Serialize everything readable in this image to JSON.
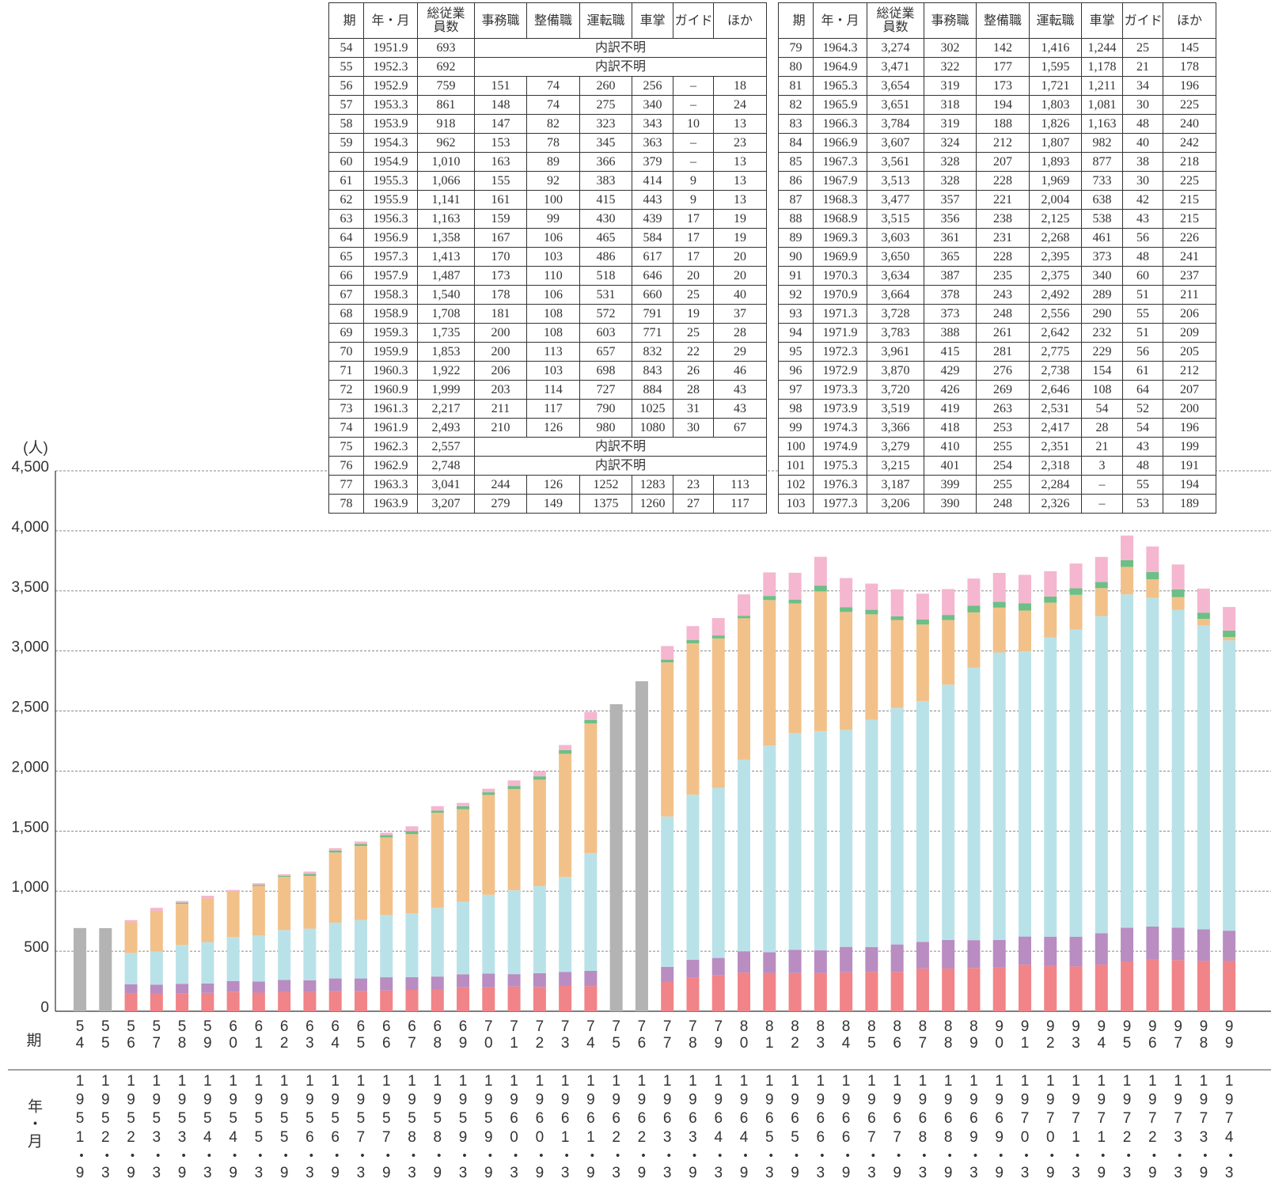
{
  "chart_data": {
    "type": "bar",
    "stacked": true,
    "y_unit": "(人)",
    "x_label": "期",
    "x2_label": "年・月",
    "categories": [
      "54",
      "55",
      "56",
      "57",
      "58",
      "59",
      "60",
      "61",
      "62",
      "63",
      "64",
      "65",
      "66",
      "67",
      "68",
      "69",
      "70",
      "71",
      "72",
      "73",
      "74",
      "75",
      "76",
      "77",
      "78",
      "79",
      "80",
      "81",
      "82",
      "83",
      "84",
      "85",
      "86",
      "87",
      "88",
      "89",
      "90",
      "91",
      "92",
      "93",
      "94",
      "95",
      "96",
      "97",
      "98",
      "99"
    ],
    "dates": [
      "1951・9",
      "1952・3",
      "1952・9",
      "1953・3",
      "1953・9",
      "1954・3",
      "1954・9",
      "1955・3",
      "1955・9",
      "1956・3",
      "1956・9",
      "1957・3",
      "1957・9",
      "1958・3",
      "1958・9",
      "1959・3",
      "1959・9",
      "1960・3",
      "1960・9",
      "1961・3",
      "1961・9",
      "1962・3",
      "1962・9",
      "1963・3",
      "1963・9",
      "1964・3",
      "1964・9",
      "1965・3",
      "1965・9",
      "1966・3",
      "1966・9",
      "1967・3",
      "1967・9",
      "1968・3",
      "1968・9",
      "1969・3",
      "1969・9",
      "1970・3",
      "1970・9",
      "1971・3",
      "1971・9",
      "1972・3",
      "1972・9",
      "1973・3",
      "1973・9",
      "1974・3"
    ],
    "ylim": [
      0,
      4500
    ],
    "yticks": [
      0,
      500,
      {
        "value": 1000,
        "label": "1,000"
      },
      {
        "value": 1500,
        "label": "1,500"
      },
      {
        "value": 2000,
        "label": "2,000"
      },
      {
        "value": 2500,
        "label": "2,500"
      },
      {
        "value": 3000,
        "label": "3,000"
      },
      {
        "value": 3500,
        "label": "3,500"
      },
      {
        "value": 4000,
        "label": "4,000"
      },
      {
        "value": 4500,
        "label": "4,500"
      }
    ],
    "grid": true,
    "series": [
      {
        "name": "事務職",
        "color": "#f08488",
        "values": [
          null,
          null,
          151,
          148,
          147,
          153,
          163,
          155,
          161,
          159,
          167,
          170,
          173,
          178,
          181,
          200,
          200,
          206,
          203,
          211,
          210,
          null,
          null,
          244,
          279,
          302,
          322,
          319,
          318,
          319,
          324,
          328,
          328,
          357,
          356,
          361,
          365,
          387,
          378,
          373,
          388,
          415,
          429,
          426,
          419,
          418
        ]
      },
      {
        "name": "整備職",
        "color": "#b98cc2",
        "values": [
          null,
          null,
          74,
          74,
          82,
          78,
          89,
          92,
          100,
          99,
          106,
          103,
          110,
          106,
          108,
          108,
          113,
          103,
          114,
          117,
          126,
          null,
          null,
          126,
          149,
          142,
          177,
          173,
          194,
          188,
          212,
          207,
          228,
          221,
          238,
          231,
          228,
          235,
          243,
          248,
          261,
          281,
          276,
          269,
          263,
          253
        ]
      },
      {
        "name": "運転職",
        "color": "#b9e2e8",
        "values": [
          null,
          null,
          260,
          275,
          323,
          345,
          366,
          383,
          415,
          430,
          465,
          486,
          518,
          531,
          572,
          603,
          657,
          698,
          727,
          790,
          980,
          null,
          null,
          1252,
          1375,
          1416,
          1595,
          1721,
          1803,
          1826,
          1807,
          1893,
          1969,
          2004,
          2125,
          2268,
          2395,
          2375,
          2492,
          2556,
          2642,
          2775,
          2738,
          2646,
          2531,
          2417
        ]
      },
      {
        "name": "車掌",
        "color": "#f2c189",
        "values": [
          null,
          null,
          256,
          340,
          343,
          363,
          379,
          414,
          443,
          439,
          584,
          617,
          646,
          660,
          791,
          771,
          832,
          843,
          884,
          1025,
          1080,
          null,
          null,
          1283,
          1260,
          1244,
          1178,
          1211,
          1081,
          1163,
          982,
          877,
          733,
          638,
          538,
          461,
          373,
          340,
          289,
          290,
          232,
          229,
          154,
          108,
          54,
          28
        ]
      },
      {
        "name": "ガイド",
        "color": "#6cbf86",
        "values": [
          null,
          null,
          null,
          null,
          10,
          null,
          null,
          9,
          9,
          17,
          17,
          17,
          20,
          25,
          19,
          25,
          22,
          26,
          28,
          31,
          30,
          null,
          null,
          23,
          27,
          25,
          21,
          34,
          30,
          48,
          40,
          38,
          30,
          42,
          43,
          56,
          48,
          60,
          51,
          55,
          51,
          56,
          61,
          64,
          52,
          54
        ]
      },
      {
        "name": "ほか",
        "color": "#f5b6cf",
        "values": [
          null,
          null,
          18,
          24,
          13,
          23,
          13,
          13,
          13,
          19,
          19,
          20,
          20,
          40,
          37,
          28,
          29,
          46,
          43,
          43,
          67,
          null,
          null,
          113,
          117,
          145,
          178,
          196,
          225,
          240,
          242,
          218,
          225,
          215,
          215,
          226,
          241,
          237,
          211,
          206,
          209,
          205,
          212,
          207,
          200,
          196
        ]
      },
      {
        "name": "総従業員数",
        "color": "#b3b3b3",
        "values": [
          693,
          692,
          null,
          null,
          null,
          null,
          null,
          null,
          null,
          null,
          null,
          null,
          null,
          null,
          null,
          null,
          null,
          null,
          null,
          null,
          null,
          2557,
          2748,
          null,
          null,
          null,
          null,
          null,
          null,
          null,
          null,
          null,
          null,
          null,
          null,
          null,
          null,
          null,
          null,
          null,
          null,
          null,
          null,
          null,
          null,
          null
        ]
      }
    ]
  },
  "tables": [
    {
      "header": [
        "期",
        "年・月",
        "総従業員数",
        "事務職",
        "整備職",
        "運転職",
        "車掌",
        "ガイド",
        "ほか"
      ],
      "rows": [
        [
          "54",
          "1951.9",
          "693",
          "内訳不明"
        ],
        [
          "55",
          "1952.3",
          "692",
          "内訳不明"
        ],
        [
          "56",
          "1952.9",
          "759",
          "151",
          "74",
          "260",
          "256",
          "–",
          "18"
        ],
        [
          "57",
          "1953.3",
          "861",
          "148",
          "74",
          "275",
          "340",
          "–",
          "24"
        ],
        [
          "58",
          "1953.9",
          "918",
          "147",
          "82",
          "323",
          "343",
          "10",
          "13"
        ],
        [
          "59",
          "1954.3",
          "962",
          "153",
          "78",
          "345",
          "363",
          "–",
          "23"
        ],
        [
          "60",
          "1954.9",
          "1,010",
          "163",
          "89",
          "366",
          "379",
          "–",
          "13"
        ],
        [
          "61",
          "1955.3",
          "1,066",
          "155",
          "92",
          "383",
          "414",
          "9",
          "13"
        ],
        [
          "62",
          "1955.9",
          "1,141",
          "161",
          "100",
          "415",
          "443",
          "9",
          "13"
        ],
        [
          "63",
          "1956.3",
          "1,163",
          "159",
          "99",
          "430",
          "439",
          "17",
          "19"
        ],
        [
          "64",
          "1956.9",
          "1,358",
          "167",
          "106",
          "465",
          "584",
          "17",
          "19"
        ],
        [
          "65",
          "1957.3",
          "1,413",
          "170",
          "103",
          "486",
          "617",
          "17",
          "20"
        ],
        [
          "66",
          "1957.9",
          "1,487",
          "173",
          "110",
          "518",
          "646",
          "20",
          "20"
        ],
        [
          "67",
          "1958.3",
          "1,540",
          "178",
          "106",
          "531",
          "660",
          "25",
          "40"
        ],
        [
          "68",
          "1958.9",
          "1,708",
          "181",
          "108",
          "572",
          "791",
          "19",
          "37"
        ],
        [
          "69",
          "1959.3",
          "1,735",
          "200",
          "108",
          "603",
          "771",
          "25",
          "28"
        ],
        [
          "70",
          "1959.9",
          "1,853",
          "200",
          "113",
          "657",
          "832",
          "22",
          "29"
        ],
        [
          "71",
          "1960.3",
          "1,922",
          "206",
          "103",
          "698",
          "843",
          "26",
          "46"
        ],
        [
          "72",
          "1960.9",
          "1,999",
          "203",
          "114",
          "727",
          "884",
          "28",
          "43"
        ],
        [
          "73",
          "1961.3",
          "2,217",
          "211",
          "117",
          "790",
          "1025",
          "31",
          "43"
        ],
        [
          "74",
          "1961.9",
          "2,493",
          "210",
          "126",
          "980",
          "1080",
          "30",
          "67"
        ],
        [
          "75",
          "1962.3",
          "2,557",
          "内訳不明"
        ],
        [
          "76",
          "1962.9",
          "2,748",
          "内訳不明"
        ],
        [
          "77",
          "1963.3",
          "3,041",
          "244",
          "126",
          "1252",
          "1283",
          "23",
          "113"
        ],
        [
          "78",
          "1963.9",
          "3,207",
          "279",
          "149",
          "1375",
          "1260",
          "27",
          "117"
        ]
      ]
    },
    {
      "header": [
        "期",
        "年・月",
        "総従業員数",
        "事務職",
        "整備職",
        "運転職",
        "車掌",
        "ガイド",
        "ほか"
      ],
      "rows": [
        [
          "79",
          "1964.3",
          "3,274",
          "302",
          "142",
          "1,416",
          "1,244",
          "25",
          "145"
        ],
        [
          "80",
          "1964.9",
          "3,471",
          "322",
          "177",
          "1,595",
          "1,178",
          "21",
          "178"
        ],
        [
          "81",
          "1965.3",
          "3,654",
          "319",
          "173",
          "1,721",
          "1,211",
          "34",
          "196"
        ],
        [
          "82",
          "1965.9",
          "3,651",
          "318",
          "194",
          "1,803",
          "1,081",
          "30",
          "225"
        ],
        [
          "83",
          "1966.3",
          "3,784",
          "319",
          "188",
          "1,826",
          "1,163",
          "48",
          "240"
        ],
        [
          "84",
          "1966.9",
          "3,607",
          "324",
          "212",
          "1,807",
          "982",
          "40",
          "242"
        ],
        [
          "85",
          "1967.3",
          "3,561",
          "328",
          "207",
          "1,893",
          "877",
          "38",
          "218"
        ],
        [
          "86",
          "1967.9",
          "3,513",
          "328",
          "228",
          "1,969",
          "733",
          "30",
          "225"
        ],
        [
          "87",
          "1968.3",
          "3,477",
          "357",
          "221",
          "2,004",
          "638",
          "42",
          "215"
        ],
        [
          "88",
          "1968.9",
          "3,515",
          "356",
          "238",
          "2,125",
          "538",
          "43",
          "215"
        ],
        [
          "89",
          "1969.3",
          "3,603",
          "361",
          "231",
          "2,268",
          "461",
          "56",
          "226"
        ],
        [
          "90",
          "1969.9",
          "3,650",
          "365",
          "228",
          "2,395",
          "373",
          "48",
          "241"
        ],
        [
          "91",
          "1970.3",
          "3,634",
          "387",
          "235",
          "2,375",
          "340",
          "60",
          "237"
        ],
        [
          "92",
          "1970.9",
          "3,664",
          "378",
          "243",
          "2,492",
          "289",
          "51",
          "211"
        ],
        [
          "93",
          "1971.3",
          "3,728",
          "373",
          "248",
          "2,556",
          "290",
          "55",
          "206"
        ],
        [
          "94",
          "1971.9",
          "3,783",
          "388",
          "261",
          "2,642",
          "232",
          "51",
          "209"
        ],
        [
          "95",
          "1972.3",
          "3,961",
          "415",
          "281",
          "2,775",
          "229",
          "56",
          "205"
        ],
        [
          "96",
          "1972.9",
          "3,870",
          "429",
          "276",
          "2,738",
          "154",
          "61",
          "212"
        ],
        [
          "97",
          "1973.3",
          "3,720",
          "426",
          "269",
          "2,646",
          "108",
          "64",
          "207"
        ],
        [
          "98",
          "1973.9",
          "3,519",
          "419",
          "263",
          "2,531",
          "54",
          "52",
          "200"
        ],
        [
          "99",
          "1974.3",
          "3,366",
          "418",
          "253",
          "2,417",
          "28",
          "54",
          "196"
        ],
        [
          "100",
          "1974.9",
          "3,279",
          "410",
          "255",
          "2,351",
          "21",
          "43",
          "199"
        ],
        [
          "101",
          "1975.3",
          "3,215",
          "401",
          "254",
          "2,318",
          "3",
          "48",
          "191"
        ],
        [
          "102",
          "1976.3",
          "3,187",
          "399",
          "255",
          "2,284",
          "–",
          "55",
          "194"
        ],
        [
          "103",
          "1977.3",
          "3,206",
          "390",
          "248",
          "2,326",
          "–",
          "53",
          "189"
        ]
      ]
    }
  ]
}
